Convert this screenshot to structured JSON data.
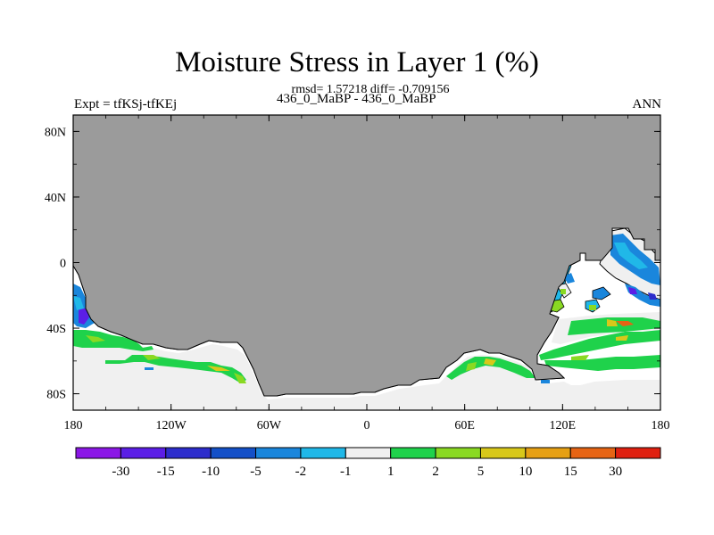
{
  "figure": {
    "title": "Moisture Stress in Layer 1 (%)",
    "subtitle": "rmsd= 1.57218 diff= -0.709156",
    "left_label": "Expt = tfKSj-tfKEj",
    "center_label": "436_0_MaBP - 436_0_MaBP",
    "right_label": "ANN"
  },
  "chart_data": {
    "type": "heatmap",
    "projection": "cylindrical-equidistant",
    "title": "Moisture Stress in Layer 1 (%)",
    "lon_range": [
      -180,
      180
    ],
    "lat_range": [
      -90,
      90
    ],
    "x_ticks": [
      "180",
      "120W",
      "60W",
      "0",
      "60E",
      "120E",
      "180"
    ],
    "y_ticks": [
      "80N",
      "40N",
      "0",
      "40S",
      "80S"
    ],
    "y_tick_values": [
      80,
      40,
      0,
      -40,
      -80
    ],
    "land_color": "#9b9b9b",
    "colorbar": {
      "labels": [
        "-30",
        "-15",
        "-10",
        "-5",
        "-2",
        "-1",
        "1",
        "2",
        "5",
        "10",
        "15",
        "30"
      ],
      "colors": [
        "#8b17e6",
        "#5b1ee6",
        "#2d2dcc",
        "#1450c8",
        "#1a86dc",
        "#20b8e8",
        "#f0f0f0",
        "#1fd24b",
        "#8ad922",
        "#d8c81a",
        "#e6a014",
        "#e66414",
        "#e02010"
      ]
    }
  }
}
